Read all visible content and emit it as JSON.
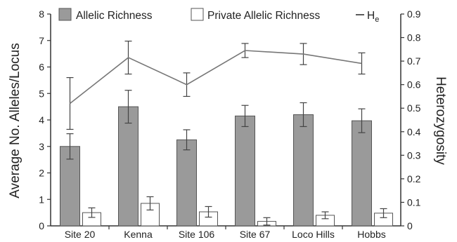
{
  "chart_data": {
    "type": "bar",
    "categories": [
      "Site 20",
      "Kenna",
      "Site 106",
      "Site 67",
      "Loco Hills",
      "Hobbs"
    ],
    "series": [
      {
        "name": "Allelic Richness",
        "kind": "bar",
        "axis": "left",
        "color": "#9a9a9a",
        "values": [
          3.0,
          4.5,
          3.25,
          4.15,
          4.2,
          3.97
        ],
        "error": [
          0.48,
          0.62,
          0.38,
          0.4,
          0.45,
          0.45
        ]
      },
      {
        "name": "Private Allelic Richness",
        "kind": "bar",
        "axis": "left",
        "color": "#ffffff",
        "values": [
          0.5,
          0.85,
          0.53,
          0.17,
          0.4,
          0.48
        ],
        "error": [
          0.18,
          0.25,
          0.2,
          0.14,
          0.13,
          0.17
        ]
      },
      {
        "name": "H",
        "name_subscript": "e",
        "kind": "line",
        "axis": "right",
        "color": "#777777",
        "values": [
          0.52,
          0.715,
          0.6,
          0.745,
          0.73,
          0.69
        ],
        "error": [
          0.11,
          0.07,
          0.05,
          0.03,
          0.045,
          0.045
        ]
      }
    ],
    "ylabel": "Average No. Alleles/Locus",
    "y2label": "Heterozygosity",
    "ylim": [
      0,
      8
    ],
    "y2lim": [
      0,
      0.9
    ],
    "yticks": [
      "0",
      "1",
      "2",
      "3",
      "4",
      "5",
      "6",
      "7",
      "8"
    ],
    "y2ticks": [
      "0",
      "0.1",
      "0.2",
      "0.3",
      "0.4",
      "0.5",
      "0.6",
      "0.7",
      "0.8",
      "0.9"
    ],
    "grid": false,
    "legend": "top"
  }
}
